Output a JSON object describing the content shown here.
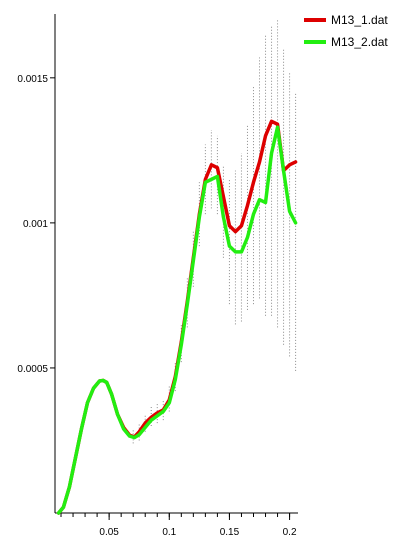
{
  "chart_data": {
    "type": "line",
    "title": "",
    "xlabel": "",
    "ylabel": "",
    "xlim": [
      0.005,
      0.207
    ],
    "ylim": [
      0.0,
      0.00172
    ],
    "legend_position": "top-right",
    "x_ticks": [
      {
        "value": 0.05,
        "label": "0.05"
      },
      {
        "value": 0.1,
        "label": "0.1"
      },
      {
        "value": 0.15,
        "label": "0.15"
      },
      {
        "value": 0.2,
        "label": "0.2"
      }
    ],
    "x_minor_step": 0.01,
    "y_ticks": [
      {
        "value": 0.0005,
        "label": "0.0005"
      },
      {
        "value": 0.001,
        "label": "0.001"
      },
      {
        "value": 0.0015,
        "label": "0.0015"
      }
    ],
    "series": [
      {
        "name": "M13_1.dat",
        "color": "#dd0000",
        "x": [
          0.008,
          0.012,
          0.017,
          0.022,
          0.027,
          0.032,
          0.037,
          0.042,
          0.045,
          0.048,
          0.052,
          0.057,
          0.062,
          0.067,
          0.071,
          0.075,
          0.08,
          0.085,
          0.09,
          0.095,
          0.1,
          0.105,
          0.11,
          0.115,
          0.12,
          0.125,
          0.13,
          0.135,
          0.14,
          0.145,
          0.15,
          0.155,
          0.16,
          0.165,
          0.17,
          0.175,
          0.18,
          0.185,
          0.19,
          0.195,
          0.2,
          0.205
        ],
        "y": [
          0.0,
          2e-05,
          9e-05,
          0.00019,
          0.00029,
          0.00038,
          0.00043,
          0.000455,
          0.000457,
          0.00045,
          0.00041,
          0.00034,
          0.000295,
          0.000268,
          0.000262,
          0.00028,
          0.00031,
          0.00033,
          0.000345,
          0.000355,
          0.00039,
          0.00047,
          0.00059,
          0.00073,
          0.00088,
          0.00103,
          0.00115,
          0.0012,
          0.00119,
          0.00109,
          0.00099,
          0.00097,
          0.00099,
          0.00106,
          0.00114,
          0.00121,
          0.0013,
          0.00135,
          0.00134,
          0.00118,
          0.0012,
          0.00121
        ]
      },
      {
        "name": "M13_2.dat",
        "color": "#22ee11",
        "x": [
          0.008,
          0.012,
          0.017,
          0.022,
          0.027,
          0.032,
          0.037,
          0.042,
          0.045,
          0.048,
          0.052,
          0.057,
          0.062,
          0.067,
          0.071,
          0.075,
          0.08,
          0.085,
          0.09,
          0.095,
          0.1,
          0.105,
          0.11,
          0.115,
          0.12,
          0.125,
          0.13,
          0.135,
          0.14,
          0.145,
          0.15,
          0.155,
          0.16,
          0.165,
          0.17,
          0.175,
          0.18,
          0.185,
          0.19,
          0.195,
          0.2,
          0.205
        ],
        "y": [
          0.0,
          2e-05,
          9e-05,
          0.00019,
          0.00029,
          0.00038,
          0.00043,
          0.000455,
          0.000457,
          0.00045,
          0.00041,
          0.00034,
          0.00029,
          0.000265,
          0.00026,
          0.00027,
          0.000295,
          0.00032,
          0.000335,
          0.00035,
          0.00038,
          0.00046,
          0.00058,
          0.00072,
          0.00087,
          0.00102,
          0.00114,
          0.00115,
          0.00116,
          0.00102,
          0.00092,
          0.0009,
          0.0009,
          0.00095,
          0.00103,
          0.00108,
          0.00107,
          0.00124,
          0.00133,
          0.00118,
          0.00104,
          0.001
        ]
      }
    ],
    "error_bars": {
      "color": "#8a8a8a",
      "style": "dotted",
      "x": [
        0.07,
        0.075,
        0.08,
        0.085,
        0.09,
        0.095,
        0.1,
        0.105,
        0.11,
        0.115,
        0.12,
        0.125,
        0.13,
        0.135,
        0.14,
        0.145,
        0.15,
        0.155,
        0.16,
        0.165,
        0.17,
        0.175,
        0.18,
        0.185,
        0.19,
        0.195,
        0.2,
        0.205
      ],
      "low": [
        0.00024,
        0.00025,
        0.00028,
        0.0003,
        0.00031,
        0.00032,
        0.00035,
        0.00042,
        0.00052,
        0.00064,
        0.00078,
        0.00092,
        0.00103,
        0.00105,
        0.00103,
        0.00088,
        0.00072,
        0.00065,
        0.00066,
        0.0007,
        0.00072,
        0.00074,
        0.00068,
        0.00068,
        0.00064,
        0.00058,
        0.00054,
        0.00049
      ],
      "high": [
        0.00029,
        0.00031,
        0.00034,
        0.00037,
        0.00038,
        0.00039,
        0.00044,
        0.00052,
        0.00065,
        0.00081,
        0.00097,
        0.00114,
        0.00127,
        0.00132,
        0.0013,
        0.0012,
        0.00115,
        0.00118,
        0.00124,
        0.00134,
        0.00147,
        0.00157,
        0.00165,
        0.00168,
        0.0017,
        0.0016,
        0.00152,
        0.00145
      ]
    }
  }
}
